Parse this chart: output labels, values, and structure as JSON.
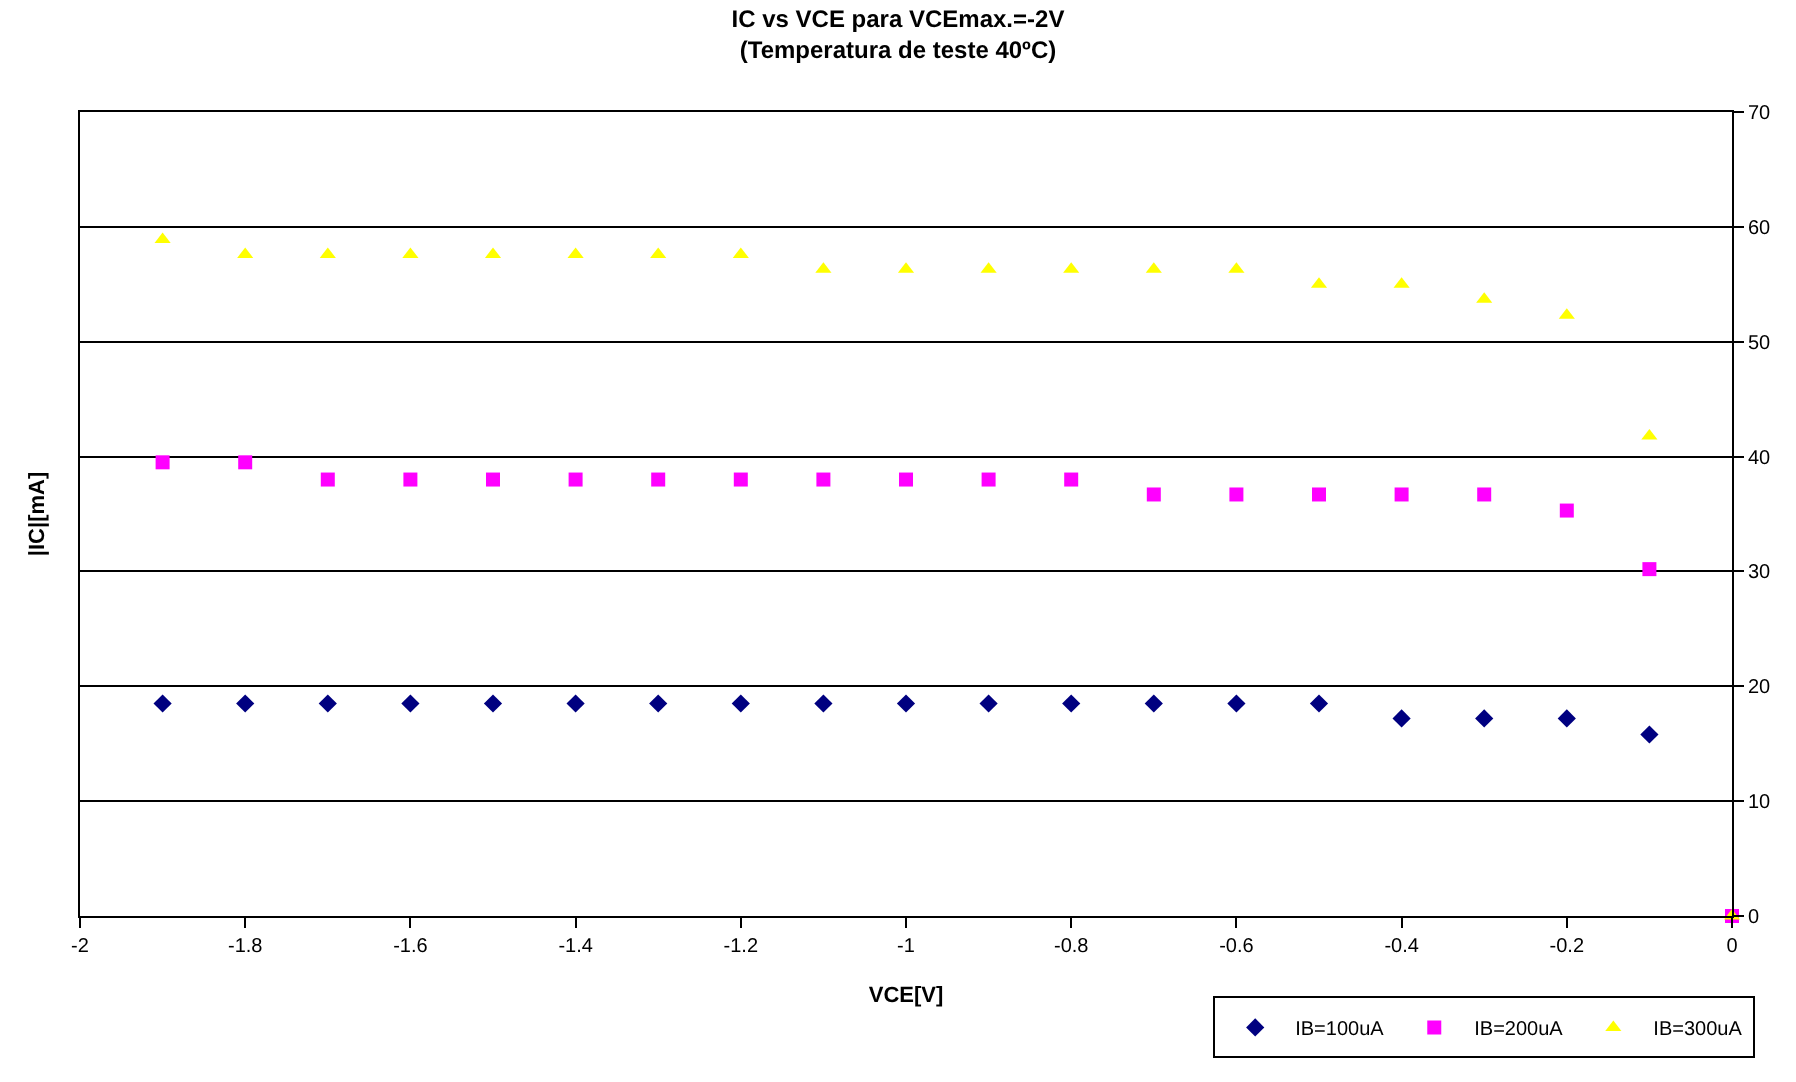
{
  "chart_data": {
    "type": "scatter",
    "title": "IC vs VCE para VCEmax.=-2V",
    "subtitle": "(Temperatura de teste 40ºC)",
    "xlabel": "VCE[V]",
    "ylabel": "|IC|[mA]",
    "x": [
      -1.9,
      -1.8,
      -1.7,
      -1.6,
      -1.5,
      -1.4,
      -1.3,
      -1.2,
      -1.1,
      -1.0,
      -0.9,
      -0.8,
      -0.7,
      -0.6,
      -0.5,
      -0.4,
      -0.3,
      -0.2,
      -0.1,
      0
    ],
    "series": [
      {
        "name": "IB=100uA",
        "color": "#000080",
        "marker": "diamond",
        "values": [
          18.5,
          18.5,
          18.5,
          18.5,
          18.5,
          18.5,
          18.5,
          18.5,
          18.5,
          18.5,
          18.5,
          18.5,
          18.5,
          18.5,
          18.5,
          17.2,
          17.2,
          17.2,
          15.8,
          null
        ]
      },
      {
        "name": "IB=200uA",
        "color": "#ff00ff",
        "marker": "square",
        "values": [
          39.5,
          39.5,
          38.0,
          38.0,
          38.0,
          38.0,
          38.0,
          38.0,
          38.0,
          38.0,
          38.0,
          38.0,
          36.7,
          36.7,
          36.7,
          36.7,
          36.7,
          35.3,
          30.2,
          0
        ]
      },
      {
        "name": "IB=300uA",
        "color": "#ffff00",
        "marker": "triangle",
        "values": [
          58.9,
          57.6,
          57.6,
          57.6,
          57.6,
          57.6,
          57.6,
          57.6,
          56.3,
          56.3,
          56.3,
          56.3,
          56.3,
          56.3,
          55.0,
          55.0,
          53.7,
          52.3,
          41.8,
          0
        ]
      }
    ],
    "xlim": [
      -2,
      0
    ],
    "xticks": [
      -2,
      -1.8,
      -1.6,
      -1.4,
      -1.2,
      -1,
      -0.8,
      -0.6,
      -0.4,
      -0.2,
      0
    ],
    "ylim": [
      0,
      70
    ],
    "yticks": [
      0,
      10,
      20,
      30,
      40,
      50,
      60,
      70
    ],
    "grid": "y",
    "legend": "bottom"
  }
}
